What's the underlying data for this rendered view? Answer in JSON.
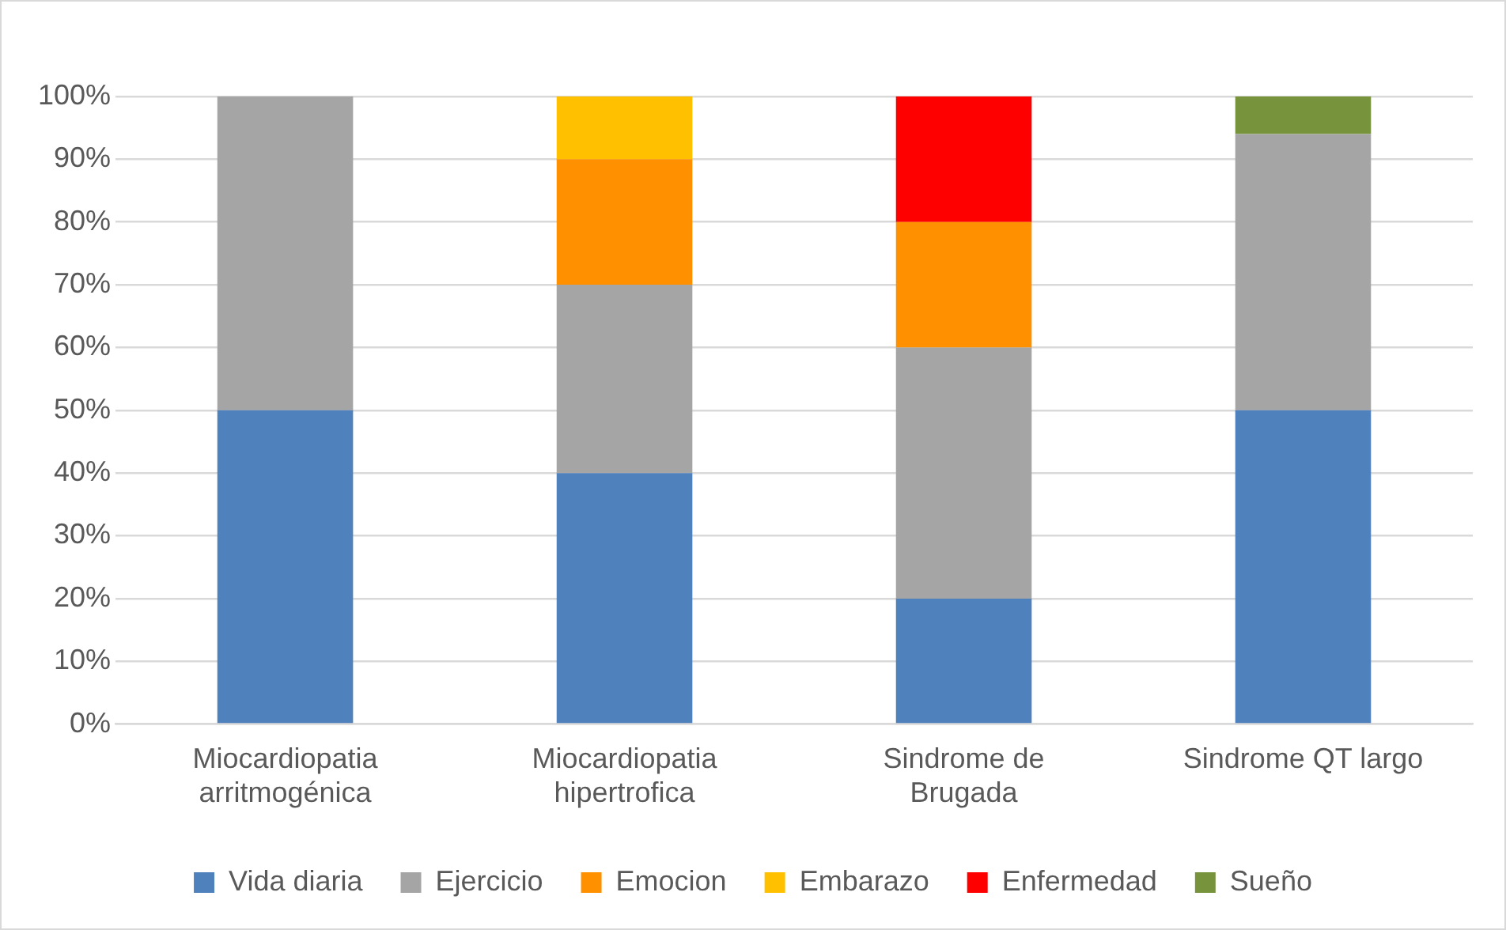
{
  "chart_data": {
    "type": "bar",
    "stacked": true,
    "categories": [
      "Miocardiopatia arritmogénica",
      "Miocardiopatia hipertrofica",
      "Sindrome de Brugada",
      "Sindrome QT largo"
    ],
    "series": [
      {
        "name": "Vida diaria",
        "color": "#4f81bd",
        "values": [
          50,
          40,
          20,
          50
        ]
      },
      {
        "name": "Ejercicio",
        "color": "#a5a5a5",
        "values": [
          50,
          30,
          40,
          44
        ]
      },
      {
        "name": "Emocion",
        "color": "#ff9100",
        "values": [
          null,
          20,
          20,
          null
        ]
      },
      {
        "name": "Embarazo",
        "color": "#ffc000",
        "values": [
          null,
          10,
          null,
          null
        ]
      },
      {
        "name": "Enfermedad",
        "color": "#ff0000",
        "values": [
          null,
          null,
          20,
          null
        ]
      },
      {
        "name": "Sueño",
        "color": "#77933c",
        "values": [
          null,
          null,
          null,
          6
        ]
      }
    ],
    "ylim": [
      0,
      100
    ],
    "yticks": [
      {
        "value": 0,
        "label": "0%"
      },
      {
        "value": 10,
        "label": "10%"
      },
      {
        "value": 20,
        "label": "20%"
      },
      {
        "value": 30,
        "label": "30%"
      },
      {
        "value": 40,
        "label": "40%"
      },
      {
        "value": 50,
        "label": "50%"
      },
      {
        "value": 60,
        "label": "60%"
      },
      {
        "value": 70,
        "label": "70%"
      },
      {
        "value": 80,
        "label": "80%"
      },
      {
        "value": 90,
        "label": "90%"
      },
      {
        "value": 100,
        "label": "100%"
      }
    ],
    "grid": "y",
    "legend": "bottom"
  }
}
